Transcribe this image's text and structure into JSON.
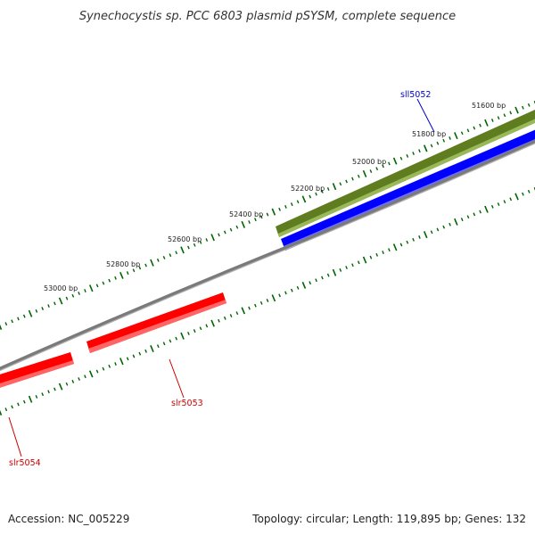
{
  "title": "Synechocystis sp. PCC 6803 plasmid pSYSM, complete sequence",
  "ticks": [
    "53000 bp",
    "52800 bp",
    "52600 bp",
    "52400 bp",
    "52200 bp",
    "52000 bp",
    "51800 bp",
    "51600 bp"
  ],
  "genes": [
    {
      "name": "sll5052",
      "strand": "minus",
      "color": "#0000ff"
    },
    {
      "name": "slr5053",
      "strand": "plus",
      "color": "#ff0000"
    },
    {
      "name": "slr5054",
      "strand": "plus",
      "color": "#ff0000"
    }
  ],
  "cds_track_color": "#6b8e23",
  "backbone_color": "#808080",
  "tick_color": "#006400",
  "footer": {
    "accession": "Accession: NC_005229",
    "summary": "Topology: circular; Length: 119,895 bp; Genes: 132"
  }
}
